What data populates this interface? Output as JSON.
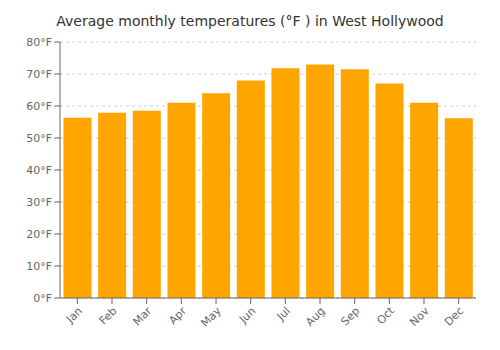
{
  "chart_data": {
    "type": "bar",
    "title": "Average monthly temperatures (°F ) in West Hollywood",
    "categories": [
      "Jan",
      "Feb",
      "Mar",
      "Apr",
      "May",
      "Jun",
      "Jul",
      "Aug",
      "Sep",
      "Oct",
      "Nov",
      "Dec"
    ],
    "values": [
      56.3,
      57.9,
      58.5,
      61.0,
      64.0,
      68.0,
      71.8,
      73.0,
      71.5,
      67.0,
      61.0,
      56.2
    ],
    "color": "#FFA500",
    "ylim": [
      0,
      80
    ],
    "yticks": [
      {
        "value": 0,
        "label": "0°F"
      },
      {
        "value": 10,
        "label": "10°F"
      },
      {
        "value": 20,
        "label": "20°F"
      },
      {
        "value": 30,
        "label": "30°F"
      },
      {
        "value": 40,
        "label": "40°F"
      },
      {
        "value": 50,
        "label": "50°F"
      },
      {
        "value": 60,
        "label": "60°F"
      },
      {
        "value": 70,
        "label": "70°F"
      },
      {
        "value": 80,
        "label": "80°F"
      }
    ],
    "grid": true
  }
}
